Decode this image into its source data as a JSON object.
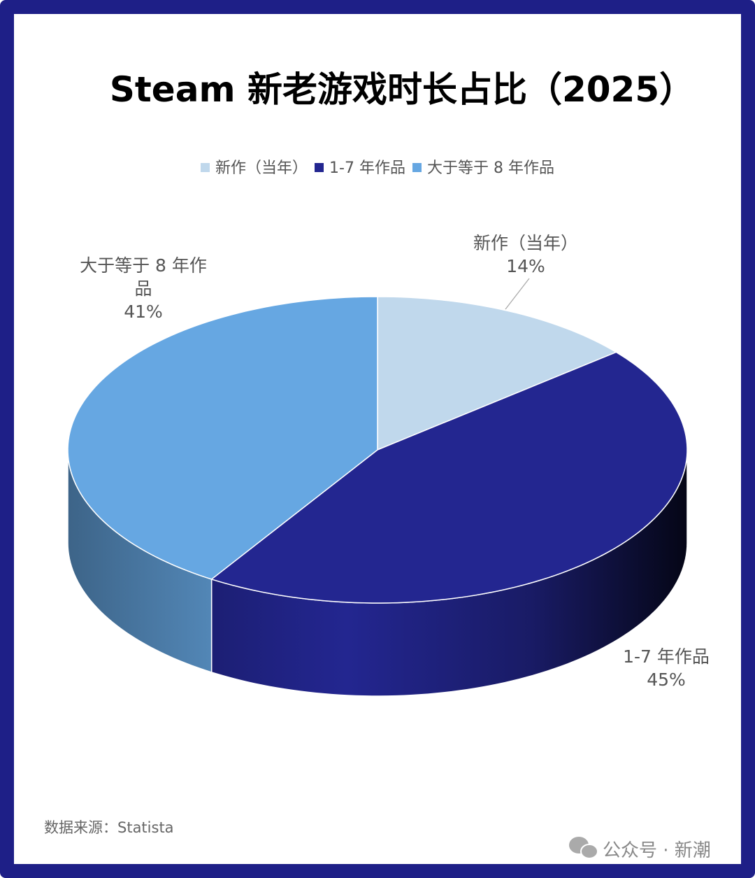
{
  "chart_data": {
    "type": "pie3d",
    "title": "Steam 新老游戏时长占比（2025）",
    "categories": [
      "新作（当年）",
      "1-7 年作品",
      "大于等于 8 年作品"
    ],
    "values": [
      14,
      45,
      41
    ],
    "value_labels": [
      "14%",
      "45%",
      "41%"
    ],
    "colors": [
      "#c0d8ec",
      "#232690",
      "#66a7e2"
    ],
    "source": "数据来源：Statista",
    "watermark": "公众号 · 新潮"
  }
}
